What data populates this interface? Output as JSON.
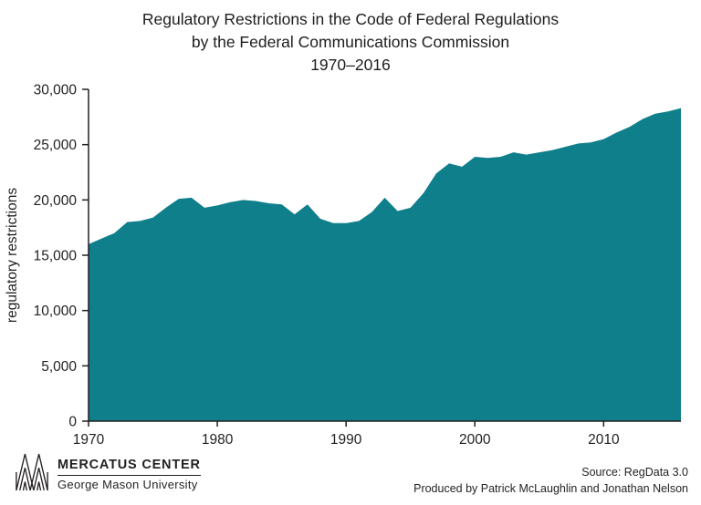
{
  "header": {
    "line1": "Regulatory Restrictions in the Code of Federal Regulations",
    "line2": "by the Federal Communications Commission",
    "line3": "1970–2016"
  },
  "chart_data": {
    "type": "area",
    "title": "Regulatory Restrictions in the Code of Federal Regulations by the Federal Communications Commission 1970–2016",
    "xlabel": "",
    "ylabel": "regulatory restrictions",
    "xlim": [
      1970,
      2016
    ],
    "ylim": [
      0,
      30000
    ],
    "x_ticks": [
      1970,
      1980,
      1990,
      2000,
      2010
    ],
    "y_ticks": [
      0,
      5000,
      10000,
      15000,
      20000,
      25000,
      30000
    ],
    "grid": false,
    "legend": "none",
    "area_color": "#0f7f8b",
    "x": [
      1970,
      1971,
      1972,
      1973,
      1974,
      1975,
      1976,
      1977,
      1978,
      1979,
      1980,
      1981,
      1982,
      1983,
      1984,
      1985,
      1986,
      1987,
      1988,
      1989,
      1990,
      1991,
      1992,
      1993,
      1994,
      1995,
      1996,
      1997,
      1998,
      1999,
      2000,
      2001,
      2002,
      2003,
      2004,
      2005,
      2006,
      2007,
      2008,
      2009,
      2010,
      2011,
      2012,
      2013,
      2014,
      2015,
      2016
    ],
    "values": [
      16000,
      16500,
      17000,
      18000,
      18100,
      18400,
      19300,
      20100,
      20200,
      19300,
      19500,
      19800,
      20000,
      19900,
      19700,
      19600,
      18700,
      19600,
      18300,
      17900,
      17900,
      18100,
      18900,
      20200,
      19000,
      19300,
      20600,
      22400,
      23300,
      23000,
      23900,
      23800,
      23900,
      24300,
      24100,
      24300,
      24500,
      24800,
      25100,
      25200,
      25500,
      26100,
      26600,
      27300,
      27800,
      28000,
      28300
    ]
  },
  "colors": {
    "accent_teal": "#0f7f8b",
    "axis_text": "#231f20"
  },
  "footer": {
    "brand_name": "MERCATUS CENTER",
    "brand_sub": "George Mason University",
    "source": "Source: RegData 3.0",
    "credit": "Produced by Patrick McLaughlin and Jonathan Nelson"
  }
}
